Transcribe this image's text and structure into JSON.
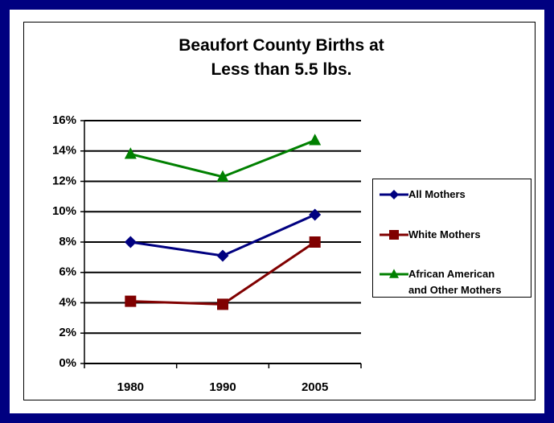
{
  "chart_data": {
    "type": "line",
    "title": [
      "Beaufort County Births at",
      "Less than 5.5 lbs."
    ],
    "categories": [
      "1980",
      "1990",
      "2005"
    ],
    "series": [
      {
        "name": "All Mothers",
        "color": "#000080",
        "marker": "diamond",
        "values": [
          8.0,
          7.1,
          9.8
        ]
      },
      {
        "name": "White Mothers",
        "color": "#800000",
        "marker": "square",
        "values": [
          4.1,
          3.9,
          8.0
        ]
      },
      {
        "name": "African American and Other Mothers",
        "color": "#008000",
        "marker": "triangle",
        "values": [
          13.8,
          12.3,
          14.7
        ]
      }
    ],
    "ylim": [
      0,
      16
    ],
    "yticks": [
      {
        "value": 0,
        "label": "0%"
      },
      {
        "value": 2,
        "label": "2%"
      },
      {
        "value": 4,
        "label": "4%"
      },
      {
        "value": 6,
        "label": "6%"
      },
      {
        "value": 8,
        "label": "8%"
      },
      {
        "value": 10,
        "label": "10%"
      },
      {
        "value": 12,
        "label": "12%"
      },
      {
        "value": 14,
        "label": "14%"
      },
      {
        "value": 16,
        "label": "16%"
      }
    ],
    "grid": true,
    "legend": "right"
  }
}
